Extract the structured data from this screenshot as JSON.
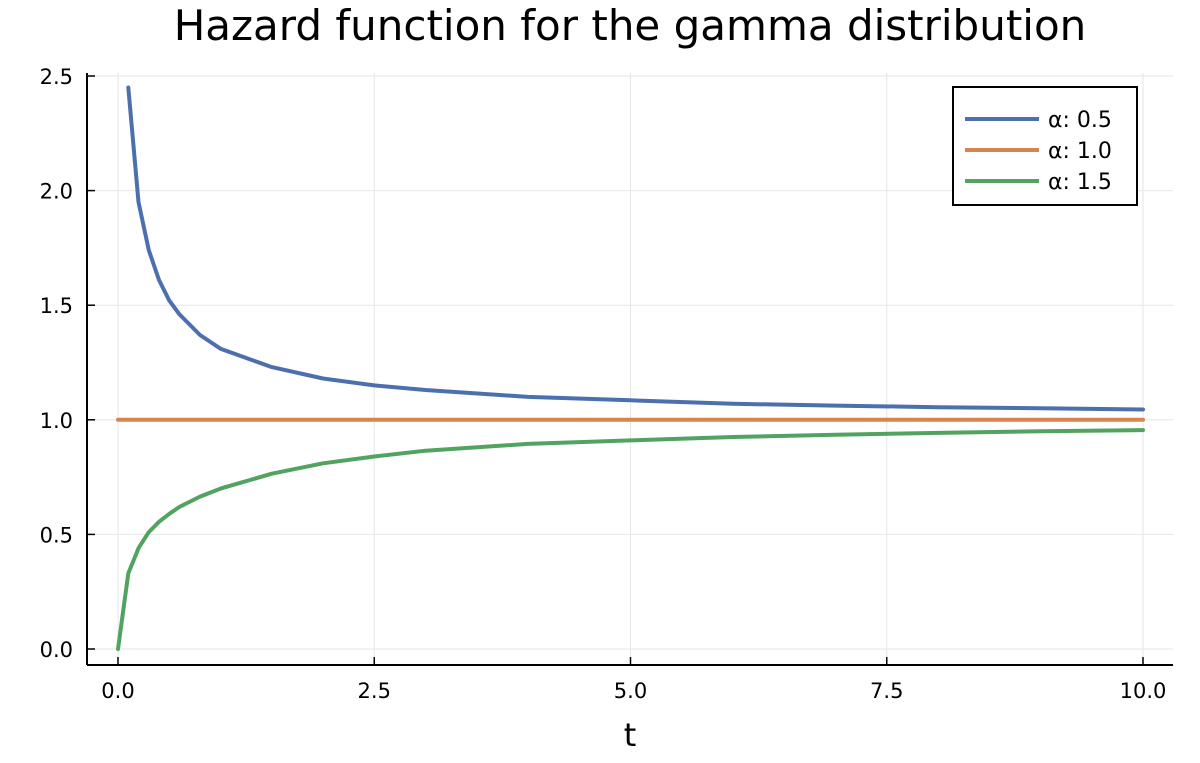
{
  "chart_data": {
    "type": "line",
    "title": "Hazard function for the gamma distribution",
    "xlabel": "t",
    "ylabel": "",
    "xlim": [
      -0.3,
      10.3
    ],
    "ylim": [
      -0.07,
      2.55
    ],
    "x_ticks": [
      0.0,
      2.5,
      5.0,
      7.5,
      10.0
    ],
    "x_tick_labels": [
      "0.0",
      "2.5",
      "5.0",
      "7.5",
      "10.0"
    ],
    "y_ticks": [
      0.0,
      0.5,
      1.0,
      1.5,
      2.0,
      2.5
    ],
    "y_tick_labels": [
      "0.0",
      "0.5",
      "1.0",
      "1.5",
      "2.0",
      "2.5"
    ],
    "grid": true,
    "legend_position": "top-right",
    "series": [
      {
        "name": "α: 0.5",
        "color": "#4c6fae",
        "x": [
          0.1,
          0.2,
          0.3,
          0.4,
          0.5,
          0.6,
          0.8,
          1.0,
          1.5,
          2.0,
          2.5,
          3.0,
          4.0,
          5.0,
          6.0,
          7.0,
          8.0,
          9.0,
          10.0
        ],
        "values": [
          2.45,
          1.95,
          1.74,
          1.61,
          1.52,
          1.46,
          1.37,
          1.31,
          1.23,
          1.18,
          1.15,
          1.13,
          1.1,
          1.085,
          1.07,
          1.062,
          1.055,
          1.05,
          1.045
        ]
      },
      {
        "name": "α: 1.0",
        "color": "#d9834f",
        "x": [
          0.0,
          10.0
        ],
        "values": [
          1.0,
          1.0
        ]
      },
      {
        "name": "α: 1.5",
        "color": "#52a360",
        "x": [
          0.0,
          0.1,
          0.2,
          0.3,
          0.4,
          0.5,
          0.6,
          0.8,
          1.0,
          1.5,
          2.0,
          2.5,
          3.0,
          4.0,
          5.0,
          6.0,
          7.0,
          8.0,
          9.0,
          10.0
        ],
        "values": [
          0.0,
          0.33,
          0.44,
          0.51,
          0.555,
          0.59,
          0.62,
          0.665,
          0.7,
          0.765,
          0.81,
          0.84,
          0.865,
          0.895,
          0.91,
          0.925,
          0.935,
          0.943,
          0.95,
          0.955
        ]
      }
    ]
  }
}
